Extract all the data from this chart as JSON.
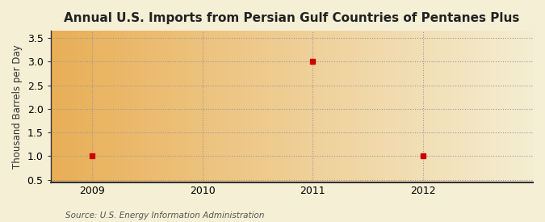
{
  "title": "Annual U.S. Imports from Persian Gulf Countries of Pentanes Plus",
  "ylabel": "Thousand Barrels per Day",
  "source_text": "Source: U.S. Energy Information Administration",
  "x_data": [
    2009,
    2011,
    2012
  ],
  "y_data": [
    1.0,
    3.0,
    1.0
  ],
  "x_ticks": [
    2009,
    2010,
    2011,
    2012
  ],
  "y_ticks": [
    0.5,
    1.0,
    1.5,
    2.0,
    2.5,
    3.0,
    3.5
  ],
  "xlim": [
    2008.62,
    2013.0
  ],
  "ylim": [
    0.45,
    3.65
  ],
  "marker_color": "#cc0000",
  "marker_style": "s",
  "marker_size": 4,
  "bg_left_color": "#e8a84a",
  "bg_right_color": "#f5efd5",
  "grid_color": "#999999",
  "grid_linestyle": ":",
  "title_fontsize": 11,
  "label_fontsize": 8.5,
  "tick_fontsize": 9,
  "source_fontsize": 7.5
}
